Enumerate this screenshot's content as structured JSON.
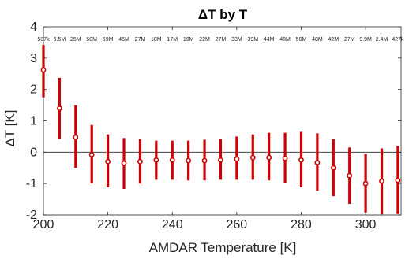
{
  "chart_data": {
    "type": "errorbar",
    "title": "ΔT by T",
    "xlabel": "AMDAR Temperature [K]",
    "ylabel": "ΔT [K]",
    "xlim": [
      200,
      311
    ],
    "ylim": [
      -2,
      4
    ],
    "xticks": [
      200,
      220,
      240,
      260,
      280,
      300
    ],
    "yticks": [
      -2,
      -1,
      0,
      1,
      2,
      3,
      4
    ],
    "grid": false,
    "zero_line": true,
    "color": "#cc0000",
    "x": [
      200,
      205,
      210,
      215,
      220,
      225,
      230,
      235,
      240,
      245,
      250,
      255,
      260,
      265,
      270,
      275,
      280,
      285,
      290,
      295,
      300,
      305,
      310
    ],
    "y": [
      2.62,
      1.4,
      0.48,
      -0.08,
      -0.3,
      -0.35,
      -0.3,
      -0.25,
      -0.25,
      -0.27,
      -0.27,
      -0.25,
      -0.22,
      -0.17,
      -0.17,
      -0.2,
      -0.25,
      -0.33,
      -0.5,
      -0.75,
      -1.0,
      -0.92,
      -0.9
    ],
    "err_low": [
      1.75,
      0.43,
      -0.5,
      -1.0,
      -1.12,
      -1.17,
      -1.0,
      -0.88,
      -0.88,
      -0.9,
      -0.9,
      -0.88,
      -0.88,
      -0.88,
      -0.9,
      -0.97,
      -1.12,
      -1.23,
      -1.4,
      -1.65,
      -1.92,
      -1.98,
      -1.97
    ],
    "err_high": [
      3.42,
      2.37,
      1.5,
      0.87,
      0.57,
      0.45,
      0.42,
      0.37,
      0.37,
      0.37,
      0.4,
      0.43,
      0.5,
      0.57,
      0.62,
      0.62,
      0.65,
      0.6,
      0.42,
      0.15,
      -0.05,
      0.12,
      0.2
    ],
    "counts": [
      "587k",
      "6.5M",
      "25M",
      "50M",
      "59M",
      "45M",
      "27M",
      "18M",
      "17M",
      "19M",
      "22M",
      "27M",
      "33M",
      "39M",
      "44M",
      "48M",
      "50M",
      "48M",
      "42M",
      "27M",
      "9.9M",
      "2.4M",
      "427k"
    ]
  }
}
